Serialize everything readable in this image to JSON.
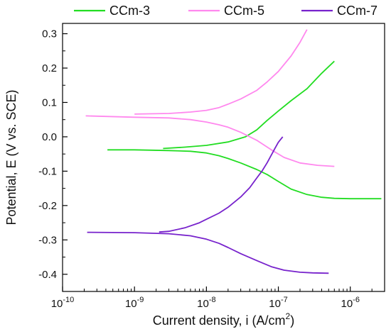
{
  "chart_data": {
    "type": "line",
    "title": "",
    "xlabel": "Current density, i (A/cm²)",
    "xlabel_main": "Current density, i (A/cm",
    "xlabel_sup": "2",
    "xlabel_tail": ")",
    "ylabel": "Potential, E (V vs. SCE)",
    "x_scale": "log",
    "xlim": [
      1e-10,
      3e-06
    ],
    "ylim": [
      -0.45,
      0.33
    ],
    "x_ticks": [
      {
        "value": 1e-10,
        "base": "10",
        "exp": "-10"
      },
      {
        "value": 1e-09,
        "base": "10",
        "exp": "-9"
      },
      {
        "value": 1e-08,
        "base": "10",
        "exp": "-8"
      },
      {
        "value": 1e-07,
        "base": "10",
        "exp": "-7"
      },
      {
        "value": 1e-06,
        "base": "10",
        "exp": "-6"
      }
    ],
    "y_ticks": [
      {
        "value": 0.3,
        "label": "0.3"
      },
      {
        "value": 0.2,
        "label": "0.2"
      },
      {
        "value": 0.1,
        "label": "0.1"
      },
      {
        "value": 0.0,
        "label": "0.0"
      },
      {
        "value": -0.1,
        "label": "-0.1"
      },
      {
        "value": -0.2,
        "label": "-0.2"
      },
      {
        "value": -0.3,
        "label": "-0.3"
      },
      {
        "value": -0.4,
        "label": "-0.4"
      }
    ],
    "grid": false,
    "legend_position": "top",
    "series": [
      {
        "name": "CCm-3",
        "color": "#22dd22",
        "cathodic": [
          [
            4.2e-10,
            -0.038
          ],
          [
            1e-09,
            -0.038
          ],
          [
            3e-09,
            -0.04
          ],
          [
            6e-09,
            -0.042
          ],
          [
            1e-08,
            -0.047
          ],
          [
            1.5e-08,
            -0.055
          ],
          [
            2e-08,
            -0.063
          ],
          [
            3e-08,
            -0.076
          ],
          [
            5e-08,
            -0.095
          ],
          [
            7e-08,
            -0.11
          ],
          [
            1e-07,
            -0.13
          ],
          [
            1.5e-07,
            -0.152
          ],
          [
            2.5e-07,
            -0.168
          ],
          [
            4e-07,
            -0.176
          ],
          [
            6e-07,
            -0.179
          ],
          [
            1e-06,
            -0.18
          ],
          [
            2.7e-06,
            -0.18
          ]
        ],
        "anodic": [
          [
            2.5e-09,
            -0.034
          ],
          [
            5e-09,
            -0.03
          ],
          [
            1e-08,
            -0.025
          ],
          [
            2e-08,
            -0.015
          ],
          [
            3.5e-08,
            0.0
          ],
          [
            5e-08,
            0.02
          ],
          [
            7e-08,
            0.048
          ],
          [
            1e-07,
            0.075
          ],
          [
            1.5e-07,
            0.105
          ],
          [
            2.5e-07,
            0.14
          ],
          [
            4e-07,
            0.185
          ],
          [
            6e-07,
            0.22
          ]
        ]
      },
      {
        "name": "CCm-5",
        "color": "#ff88ee",
        "cathodic": [
          [
            2.1e-10,
            0.061
          ],
          [
            1e-09,
            0.057
          ],
          [
            3e-09,
            0.055
          ],
          [
            6e-09,
            0.05
          ],
          [
            1e-08,
            0.043
          ],
          [
            1.5e-08,
            0.035
          ],
          [
            2e-08,
            0.028
          ],
          [
            3e-08,
            0.013
          ],
          [
            5e-08,
            -0.01
          ],
          [
            8e-08,
            -0.038
          ],
          [
            1.2e-07,
            -0.06
          ],
          [
            2e-07,
            -0.076
          ],
          [
            3.5e-07,
            -0.083
          ],
          [
            6e-07,
            -0.086
          ]
        ],
        "anodic": [
          [
            1e-09,
            0.066
          ],
          [
            3e-09,
            0.068
          ],
          [
            6e-09,
            0.072
          ],
          [
            1e-08,
            0.077
          ],
          [
            1.5e-08,
            0.085
          ],
          [
            2e-08,
            0.095
          ],
          [
            3e-08,
            0.11
          ],
          [
            5e-08,
            0.135
          ],
          [
            7e-08,
            0.16
          ],
          [
            1e-07,
            0.19
          ],
          [
            1.5e-07,
            0.235
          ],
          [
            2e-07,
            0.275
          ],
          [
            2.5e-07,
            0.312
          ]
        ]
      },
      {
        "name": "CCm-7",
        "color": "#7722cc",
        "cathodic": [
          [
            2.2e-10,
            -0.278
          ],
          [
            1e-09,
            -0.279
          ],
          [
            3e-09,
            -0.282
          ],
          [
            6e-09,
            -0.288
          ],
          [
            1e-08,
            -0.298
          ],
          [
            1.5e-08,
            -0.31
          ],
          [
            2e-08,
            -0.322
          ],
          [
            3e-08,
            -0.34
          ],
          [
            5e-08,
            -0.36
          ],
          [
            8e-08,
            -0.378
          ],
          [
            1.2e-07,
            -0.388
          ],
          [
            2e-07,
            -0.394
          ],
          [
            3e-07,
            -0.396
          ],
          [
            5e-07,
            -0.397
          ]
        ],
        "anodic": [
          [
            2.2e-09,
            -0.277
          ],
          [
            3e-09,
            -0.275
          ],
          [
            5e-09,
            -0.265
          ],
          [
            8e-09,
            -0.25
          ],
          [
            1e-08,
            -0.24
          ],
          [
            1.5e-08,
            -0.222
          ],
          [
            2e-08,
            -0.205
          ],
          [
            3e-08,
            -0.175
          ],
          [
            4e-08,
            -0.148
          ],
          [
            5e-08,
            -0.12
          ],
          [
            6e-08,
            -0.098
          ],
          [
            7e-08,
            -0.075
          ],
          [
            8e-08,
            -0.053
          ],
          [
            9e-08,
            -0.033
          ],
          [
            1e-07,
            -0.016
          ],
          [
            1.15e-07,
            0.0
          ]
        ]
      }
    ]
  }
}
